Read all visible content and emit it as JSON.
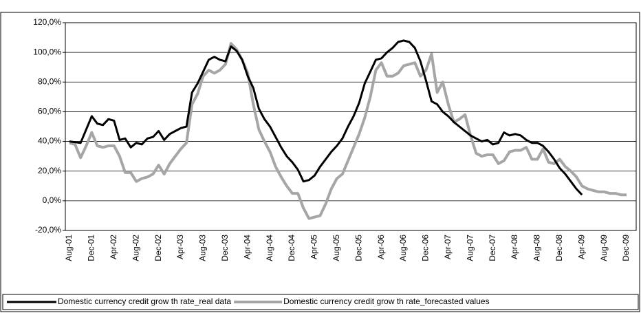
{
  "chart_data": {
    "type": "line",
    "categories": [
      "Aug-01",
      null,
      null,
      null,
      "Dec-01",
      null,
      null,
      null,
      "Apr-02",
      null,
      null,
      null,
      "Aug-02",
      null,
      null,
      null,
      "Dec-02",
      null,
      null,
      null,
      "Apr-03",
      null,
      null,
      null,
      "Aug-03",
      null,
      null,
      null,
      "Dec-03",
      null,
      null,
      null,
      "Apr-04",
      null,
      null,
      null,
      "Aug-04",
      null,
      null,
      null,
      "Dec-04",
      null,
      null,
      null,
      "Apr-05",
      null,
      null,
      null,
      "Aug-05",
      null,
      null,
      null,
      "Dec-05",
      null,
      null,
      null,
      "Apr-06",
      null,
      null,
      null,
      "Aug-06",
      null,
      null,
      null,
      "Dec-06",
      null,
      null,
      null,
      "Apr-07",
      null,
      null,
      null,
      "Aug-07",
      null,
      null,
      null,
      "Dec-07",
      null,
      null,
      null,
      "Apr-08",
      null,
      null,
      null,
      "Aug-08",
      null,
      null,
      null,
      "Dec-08",
      null,
      null,
      null,
      "Apr-09",
      null,
      null,
      null,
      "Aug-09",
      null,
      null,
      null,
      "Dec-09"
    ],
    "series": [
      {
        "name": "Domestic currency credit grow th rate_real data",
        "color": "#000000",
        "values": [
          40,
          39.5,
          39,
          48,
          57,
          52,
          51,
          55,
          54,
          41,
          42,
          36,
          39,
          38,
          42,
          43,
          47,
          41,
          45,
          47,
          49,
          50,
          73,
          79,
          87,
          95,
          97,
          95,
          94,
          104,
          101,
          95,
          84,
          76,
          62,
          55,
          50,
          43,
          36,
          30,
          26,
          21,
          13,
          14,
          17,
          23,
          28,
          33,
          37,
          42,
          50,
          57,
          66,
          79,
          87,
          95,
          96,
          100,
          103,
          107,
          108,
          107,
          103,
          94,
          81,
          67,
          65,
          60,
          57,
          53,
          50,
          47,
          44,
          42,
          40,
          41,
          38,
          39,
          46,
          44,
          45,
          44,
          41,
          39,
          39,
          37,
          33,
          28,
          22,
          18,
          13,
          8,
          4,
          null,
          null,
          null,
          null,
          null,
          null,
          null,
          null
        ]
      },
      {
        "name": "Domestic currency credit grow th rate_forecasted values",
        "color": "#a6a6a6",
        "values": [
          39,
          38,
          29,
          37,
          46,
          37,
          36,
          37,
          37,
          30,
          19,
          19,
          13,
          15,
          16,
          18,
          24,
          18,
          25,
          30,
          35,
          39,
          65,
          72,
          84,
          88,
          86,
          88,
          92,
          106,
          102,
          95,
          86,
          65,
          48,
          40,
          33,
          23,
          16,
          10,
          5,
          5,
          -5,
          -12,
          -11,
          -10,
          -2,
          8,
          15,
          18,
          27,
          36,
          45,
          56,
          70,
          88,
          93,
          84,
          84,
          86,
          91,
          92,
          93,
          84,
          88,
          99,
          73,
          80,
          65,
          53,
          55,
          58,
          44,
          32,
          30,
          31,
          31,
          25,
          27,
          33,
          34,
          34,
          36,
          28,
          28,
          35,
          26,
          25,
          28,
          23,
          20,
          16,
          10,
          8,
          7,
          6,
          6,
          5,
          5,
          4,
          4
        ]
      }
    ],
    "ylim": [
      -20,
      120
    ],
    "yticks": [
      {
        "value": -20,
        "label": "-20,0%"
      },
      {
        "value": 0,
        "label": "0,0%"
      },
      {
        "value": 20,
        "label": "20,0%"
      },
      {
        "value": 40,
        "label": "40,0%"
      },
      {
        "value": 60,
        "label": "60,0%"
      },
      {
        "value": 80,
        "label": "80,0%"
      },
      {
        "value": 100,
        "label": "100,0%"
      },
      {
        "value": 120,
        "label": "120,0%"
      }
    ],
    "grid": true,
    "legend": "bottom"
  }
}
